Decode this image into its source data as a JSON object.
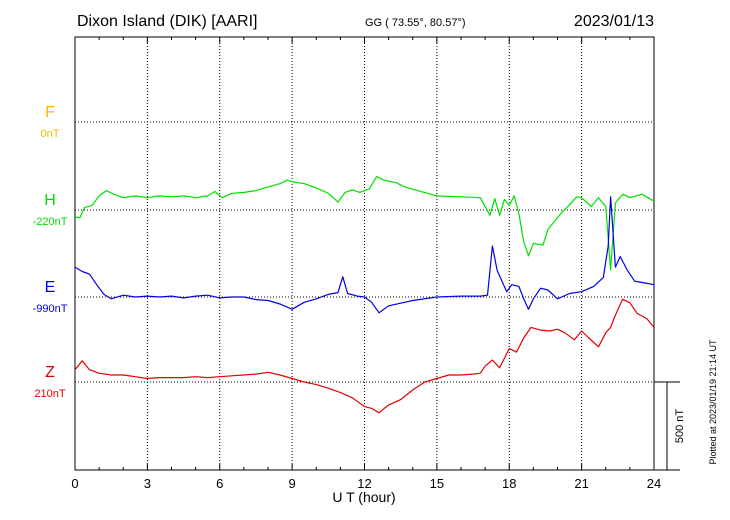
{
  "header": {
    "station": "Dixon Island (DIK)  [AARI]",
    "coords": "GG ( 73.55°,  80.57°)",
    "date": "2023/01/13"
  },
  "plotted_note": "Plotted at 2023/01/19 21:14 UT",
  "scale_bar_label": "500 nT",
  "chart_data": {
    "type": "line",
    "title": "Dixon Island (DIK)  [AARI]",
    "xlabel": "U T (hour)",
    "ylabel": "",
    "xlim": [
      0,
      24
    ],
    "x_ticks": [
      0,
      3,
      6,
      9,
      12,
      15,
      18,
      21,
      24
    ],
    "x_tick_labels": [
      "0",
      "3",
      "6",
      "9",
      "12",
      "15",
      "18",
      "21",
      "24"
    ],
    "grid": true,
    "nT_per_axis_unit": 500,
    "scale_bar_nT": 500,
    "series": [
      {
        "name": "F",
        "baseline_label": "0nT",
        "color": "#f5b800",
        "baseline_nT": 0,
        "points": []
      },
      {
        "name": "H",
        "baseline_label": "-220nT",
        "color": "#00e000",
        "baseline_nT": -220,
        "points": [
          [
            0,
            -260
          ],
          [
            0.2,
            -265
          ],
          [
            0.4,
            -205
          ],
          [
            0.7,
            -195
          ],
          [
            1.0,
            -140
          ],
          [
            1.3,
            -110
          ],
          [
            1.6,
            -130
          ],
          [
            2.0,
            -150
          ],
          [
            2.5,
            -140
          ],
          [
            3.0,
            -150
          ],
          [
            3.5,
            -140
          ],
          [
            4.0,
            -145
          ],
          [
            4.5,
            -140
          ],
          [
            5.0,
            -150
          ],
          [
            5.5,
            -140
          ],
          [
            5.8,
            -115
          ],
          [
            6.1,
            -150
          ],
          [
            6.5,
            -125
          ],
          [
            7.0,
            -120
          ],
          [
            7.5,
            -110
          ],
          [
            8.0,
            -90
          ],
          [
            8.5,
            -70
          ],
          [
            8.8,
            -50
          ],
          [
            9.0,
            -60
          ],
          [
            9.5,
            -70
          ],
          [
            10.0,
            -95
          ],
          [
            10.5,
            -125
          ],
          [
            10.9,
            -175
          ],
          [
            11.2,
            -120
          ],
          [
            11.5,
            -105
          ],
          [
            11.8,
            -120
          ],
          [
            12.2,
            -100
          ],
          [
            12.5,
            -30
          ],
          [
            12.8,
            -50
          ],
          [
            13.3,
            -65
          ],
          [
            13.7,
            -90
          ],
          [
            14.2,
            -110
          ],
          [
            15.0,
            -140
          ],
          [
            16.0,
            -145
          ],
          [
            16.8,
            -150
          ],
          [
            17.2,
            -250
          ],
          [
            17.4,
            -155
          ],
          [
            17.6,
            -250
          ],
          [
            17.8,
            -160
          ],
          [
            18.0,
            -195
          ],
          [
            18.2,
            -140
          ],
          [
            18.4,
            -240
          ],
          [
            18.6,
            -400
          ],
          [
            18.8,
            -480
          ],
          [
            19.0,
            -410
          ],
          [
            19.4,
            -420
          ],
          [
            19.6,
            -330
          ],
          [
            19.9,
            -280
          ],
          [
            20.2,
            -230
          ],
          [
            20.5,
            -190
          ],
          [
            20.8,
            -145
          ],
          [
            21.0,
            -150
          ],
          [
            21.4,
            -200
          ],
          [
            21.7,
            -150
          ],
          [
            22.0,
            -200
          ],
          [
            22.2,
            -560
          ],
          [
            22.4,
            -180
          ],
          [
            22.7,
            -130
          ],
          [
            23.0,
            -150
          ],
          [
            23.5,
            -130
          ],
          [
            24.0,
            -170
          ]
        ]
      },
      {
        "name": "E",
        "baseline_label": "-990nT",
        "color": "#0000e6",
        "baseline_nT": -990,
        "points": [
          [
            0,
            -820
          ],
          [
            0.3,
            -845
          ],
          [
            0.6,
            -860
          ],
          [
            0.9,
            -920
          ],
          [
            1.2,
            -975
          ],
          [
            1.5,
            -1000
          ],
          [
            2.0,
            -980
          ],
          [
            2.5,
            -990
          ],
          [
            3.0,
            -985
          ],
          [
            3.5,
            -990
          ],
          [
            4.0,
            -985
          ],
          [
            4.5,
            -995
          ],
          [
            5.0,
            -985
          ],
          [
            5.5,
            -980
          ],
          [
            6.0,
            -995
          ],
          [
            6.5,
            -990
          ],
          [
            7.0,
            -990
          ],
          [
            7.5,
            -1005
          ],
          [
            8.0,
            -1010
          ],
          [
            8.5,
            -1030
          ],
          [
            9.0,
            -1060
          ],
          [
            9.5,
            -1020
          ],
          [
            10.0,
            -1000
          ],
          [
            10.5,
            -975
          ],
          [
            10.9,
            -965
          ],
          [
            11.1,
            -875
          ],
          [
            11.3,
            -970
          ],
          [
            11.7,
            -985
          ],
          [
            12.0,
            -990
          ],
          [
            12.3,
            -1020
          ],
          [
            12.6,
            -1080
          ],
          [
            13.0,
            -1040
          ],
          [
            13.5,
            -1025
          ],
          [
            14.0,
            -1010
          ],
          [
            15.0,
            -990
          ],
          [
            16.0,
            -985
          ],
          [
            16.8,
            -985
          ],
          [
            17.1,
            -980
          ],
          [
            17.3,
            -700
          ],
          [
            17.5,
            -840
          ],
          [
            17.7,
            -900
          ],
          [
            17.9,
            -960
          ],
          [
            18.1,
            -920
          ],
          [
            18.4,
            -930
          ],
          [
            18.6,
            -1000
          ],
          [
            18.8,
            -1060
          ],
          [
            19.0,
            -1000
          ],
          [
            19.3,
            -940
          ],
          [
            19.6,
            -950
          ],
          [
            20.0,
            -1000
          ],
          [
            20.5,
            -970
          ],
          [
            21.0,
            -960
          ],
          [
            21.5,
            -930
          ],
          [
            21.9,
            -880
          ],
          [
            22.1,
            -700
          ],
          [
            22.2,
            -420
          ],
          [
            22.4,
            -820
          ],
          [
            22.6,
            -760
          ],
          [
            22.9,
            -840
          ],
          [
            23.2,
            -900
          ],
          [
            23.6,
            -910
          ],
          [
            24.0,
            -920
          ]
        ]
      },
      {
        "name": "Z",
        "baseline_label": "210nT",
        "color": "#e00000",
        "baseline_nT": 210,
        "points": [
          [
            0,
            280
          ],
          [
            0.3,
            330
          ],
          [
            0.6,
            280
          ],
          [
            1.0,
            260
          ],
          [
            1.5,
            250
          ],
          [
            2.0,
            250
          ],
          [
            2.5,
            240
          ],
          [
            3.0,
            230
          ],
          [
            3.5,
            235
          ],
          [
            4.0,
            235
          ],
          [
            4.5,
            235
          ],
          [
            5.0,
            240
          ],
          [
            5.5,
            235
          ],
          [
            6.0,
            240
          ],
          [
            6.5,
            245
          ],
          [
            7.0,
            250
          ],
          [
            7.5,
            255
          ],
          [
            8.0,
            265
          ],
          [
            8.5,
            250
          ],
          [
            9.0,
            230
          ],
          [
            9.5,
            210
          ],
          [
            10.0,
            195
          ],
          [
            10.5,
            175
          ],
          [
            11.0,
            150
          ],
          [
            11.5,
            120
          ],
          [
            12.0,
            70
          ],
          [
            12.3,
            60
          ],
          [
            12.6,
            35
          ],
          [
            13.0,
            80
          ],
          [
            13.5,
            110
          ],
          [
            14.0,
            165
          ],
          [
            14.5,
            210
          ],
          [
            15.0,
            230
          ],
          [
            15.5,
            250
          ],
          [
            16.0,
            250
          ],
          [
            16.5,
            255
          ],
          [
            16.8,
            260
          ],
          [
            17.0,
            300
          ],
          [
            17.3,
            335
          ],
          [
            17.6,
            290
          ],
          [
            18.0,
            400
          ],
          [
            18.3,
            380
          ],
          [
            18.6,
            460
          ],
          [
            18.9,
            520
          ],
          [
            19.3,
            505
          ],
          [
            19.7,
            500
          ],
          [
            20.0,
            510
          ],
          [
            20.3,
            490
          ],
          [
            20.7,
            450
          ],
          [
            21.0,
            500
          ],
          [
            21.3,
            460
          ],
          [
            21.7,
            410
          ],
          [
            22.0,
            490
          ],
          [
            22.2,
            520
          ],
          [
            22.4,
            590
          ],
          [
            22.7,
            680
          ],
          [
            23.0,
            660
          ],
          [
            23.3,
            600
          ],
          [
            23.7,
            570
          ],
          [
            24.0,
            520
          ]
        ]
      }
    ]
  }
}
